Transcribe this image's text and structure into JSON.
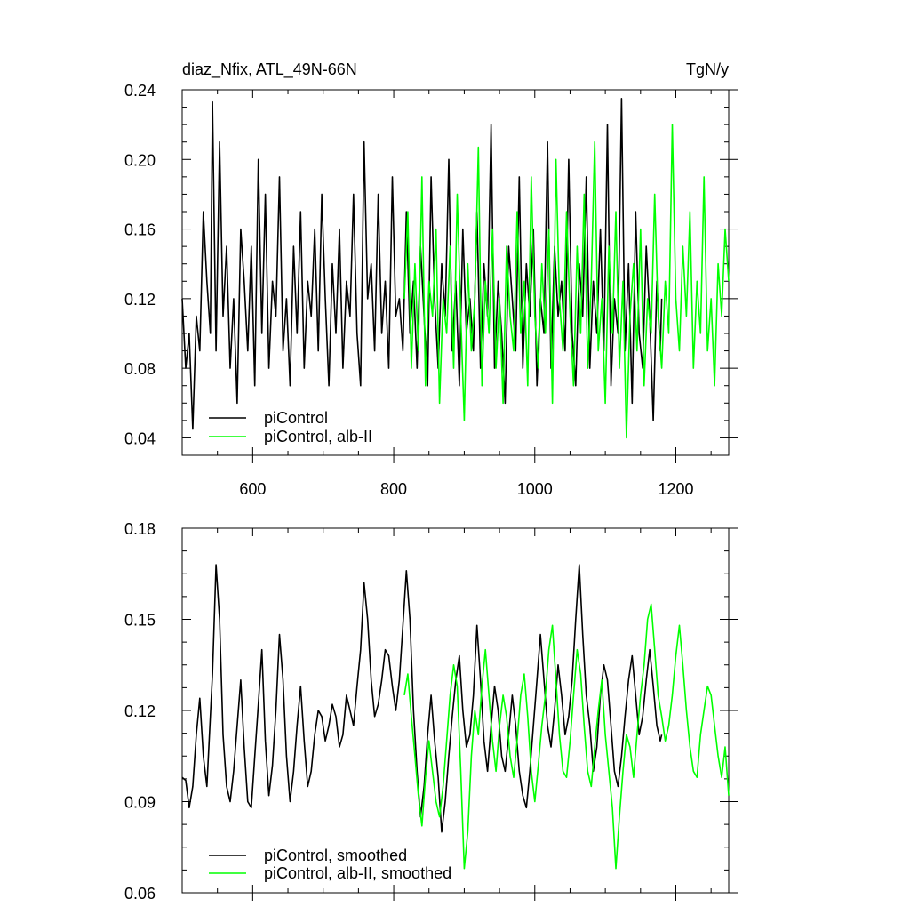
{
  "chart_data": [
    {
      "type": "line",
      "title": "diaz_Nfix, ATL_49N-66N",
      "units": "TgN/y",
      "xlim": [
        500,
        1275
      ],
      "ylim": [
        0.03,
        0.24
      ],
      "x_major_ticks": [
        600,
        800,
        1000,
        1200
      ],
      "x_tick_labels": [
        "600",
        "800",
        "1000",
        "1200"
      ],
      "y_major_ticks": [
        0.04,
        0.08,
        0.12,
        0.16,
        0.2,
        0.24
      ],
      "y_tick_labels": [
        "0.04",
        "0.08",
        "0.12",
        "0.16",
        "0.20",
        "0.24"
      ],
      "legend": {
        "position": "bottom-left",
        "entries": [
          "piControl",
          "piControl, alb-II"
        ]
      },
      "grid": false,
      "series": [
        {
          "name": "piControl",
          "color": "#000000",
          "x_start": 500,
          "x_end": 1180,
          "x": [
            500,
            505,
            510,
            515,
            520,
            525,
            530,
            535,
            540,
            543,
            548,
            553,
            558,
            563,
            568,
            573,
            578,
            583,
            588,
            593,
            598,
            603,
            608,
            613,
            618,
            623,
            628,
            633,
            638,
            643,
            648,
            653,
            658,
            663,
            668,
            673,
            678,
            683,
            688,
            693,
            698,
            703,
            708,
            713,
            718,
            723,
            728,
            733,
            738,
            743,
            748,
            753,
            758,
            763,
            768,
            773,
            778,
            783,
            788,
            793,
            798,
            803,
            808,
            813,
            818,
            823,
            828,
            833,
            838,
            843,
            848,
            853,
            858,
            863,
            868,
            873,
            878,
            883,
            888,
            893,
            898,
            903,
            908,
            913,
            918,
            923,
            928,
            933,
            938,
            943,
            948,
            953,
            958,
            963,
            968,
            973,
            978,
            983,
            988,
            993,
            998,
            1003,
            1008,
            1013,
            1018,
            1023,
            1028,
            1033,
            1038,
            1043,
            1048,
            1053,
            1058,
            1063,
            1068,
            1073,
            1078,
            1083,
            1088,
            1093,
            1098,
            1103,
            1108,
            1113,
            1118,
            1123,
            1128,
            1133,
            1138,
            1143,
            1148,
            1153,
            1158,
            1163,
            1168,
            1173,
            1178,
            1180
          ],
          "y": [
            0.12,
            0.08,
            0.1,
            0.045,
            0.11,
            0.09,
            0.17,
            0.13,
            0.1,
            0.233,
            0.09,
            0.21,
            0.11,
            0.15,
            0.08,
            0.12,
            0.06,
            0.16,
            0.13,
            0.09,
            0.15,
            0.07,
            0.2,
            0.1,
            0.18,
            0.08,
            0.13,
            0.11,
            0.19,
            0.09,
            0.12,
            0.07,
            0.15,
            0.1,
            0.17,
            0.08,
            0.13,
            0.11,
            0.16,
            0.09,
            0.18,
            0.12,
            0.07,
            0.14,
            0.1,
            0.16,
            0.08,
            0.13,
            0.11,
            0.18,
            0.1,
            0.07,
            0.21,
            0.12,
            0.14,
            0.09,
            0.18,
            0.1,
            0.13,
            0.08,
            0.19,
            0.11,
            0.12,
            0.09,
            0.17,
            0.1,
            0.13,
            0.08,
            0.15,
            0.11,
            0.07,
            0.19,
            0.12,
            0.08,
            0.14,
            0.11,
            0.2,
            0.09,
            0.13,
            0.07,
            0.16,
            0.1,
            0.12,
            0.09,
            0.17,
            0.08,
            0.14,
            0.11,
            0.22,
            0.08,
            0.13,
            0.1,
            0.06,
            0.15,
            0.12,
            0.09,
            0.19,
            0.08,
            0.14,
            0.11,
            0.16,
            0.07,
            0.12,
            0.1,
            0.21,
            0.08,
            0.15,
            0.11,
            0.13,
            0.09,
            0.2,
            0.1,
            0.07,
            0.14,
            0.11,
            0.19,
            0.08,
            0.13,
            0.1,
            0.16,
            0.09,
            0.22,
            0.07,
            0.12,
            0.1,
            0.235,
            0.09,
            0.14,
            0.06,
            0.17,
            0.1,
            0.08,
            0.15,
            0.11,
            0.05,
            0.13,
            0.09,
            0.12
          ]
        },
        {
          "name": "piControl, alb-II",
          "color": "#00ff00",
          "x_start": 815,
          "x_end": 1275,
          "x": [
            815,
            820,
            825,
            830,
            835,
            840,
            845,
            850,
            855,
            860,
            865,
            870,
            875,
            880,
            885,
            890,
            895,
            900,
            905,
            910,
            915,
            920,
            925,
            930,
            935,
            940,
            945,
            950,
            955,
            960,
            965,
            970,
            975,
            980,
            985,
            990,
            995,
            1000,
            1005,
            1010,
            1015,
            1020,
            1025,
            1030,
            1035,
            1040,
            1045,
            1050,
            1055,
            1060,
            1065,
            1070,
            1075,
            1080,
            1085,
            1090,
            1095,
            1100,
            1105,
            1110,
            1115,
            1120,
            1125,
            1130,
            1135,
            1140,
            1145,
            1150,
            1155,
            1160,
            1165,
            1170,
            1175,
            1180,
            1185,
            1190,
            1195,
            1200,
            1205,
            1210,
            1215,
            1220,
            1225,
            1230,
            1235,
            1240,
            1245,
            1250,
            1255,
            1260,
            1265,
            1270,
            1275
          ],
          "y": [
            0.12,
            0.17,
            0.08,
            0.14,
            0.09,
            0.19,
            0.07,
            0.13,
            0.11,
            0.16,
            0.06,
            0.12,
            0.1,
            0.15,
            0.08,
            0.18,
            0.11,
            0.05,
            0.14,
            0.09,
            0.12,
            0.207,
            0.07,
            0.13,
            0.1,
            0.16,
            0.08,
            0.12,
            0.06,
            0.15,
            0.11,
            0.09,
            0.17,
            0.1,
            0.13,
            0.07,
            0.19,
            0.11,
            0.08,
            0.14,
            0.1,
            0.16,
            0.06,
            0.2,
            0.12,
            0.09,
            0.17,
            0.11,
            0.07,
            0.15,
            0.1,
            0.18,
            0.08,
            0.13,
            0.21,
            0.09,
            0.12,
            0.06,
            0.15,
            0.1,
            0.17,
            0.08,
            0.13,
            0.04,
            0.11,
            0.14,
            0.09,
            0.16,
            0.07,
            0.12,
            0.1,
            0.18,
            0.11,
            0.08,
            0.13,
            0.1,
            0.22,
            0.12,
            0.09,
            0.15,
            0.11,
            0.17,
            0.08,
            0.13,
            0.1,
            0.19,
            0.09,
            0.12,
            0.07,
            0.14,
            0.11,
            0.16,
            0.13
          ]
        }
      ]
    },
    {
      "type": "line",
      "title": "",
      "xlim": [
        500,
        1275
      ],
      "ylim": [
        0.06,
        0.18
      ],
      "x_major_ticks": [
        600,
        800,
        1000,
        1200
      ],
      "x_tick_labels": [],
      "y_major_ticks": [
        0.06,
        0.09,
        0.12,
        0.15,
        0.18
      ],
      "y_tick_labels": [
        "0.06",
        "0.09",
        "0.12",
        "0.15",
        "0.18"
      ],
      "legend": {
        "position": "bottom-left",
        "entries": [
          "piControl, smoothed",
          "piControl, alb-II, smoothed"
        ]
      },
      "grid": false,
      "series": [
        {
          "name": "piControl, smoothed",
          "color": "#000000",
          "x_start": 500,
          "x_end": 1180,
          "x": [
            500,
            505,
            510,
            515,
            520,
            525,
            530,
            535,
            540,
            543,
            548,
            553,
            558,
            563,
            568,
            573,
            578,
            583,
            588,
            593,
            598,
            603,
            608,
            613,
            618,
            623,
            628,
            633,
            638,
            643,
            648,
            653,
            658,
            663,
            668,
            673,
            678,
            683,
            688,
            693,
            698,
            703,
            708,
            713,
            718,
            723,
            728,
            733,
            738,
            743,
            748,
            753,
            758,
            763,
            768,
            773,
            778,
            783,
            788,
            793,
            798,
            803,
            808,
            813,
            818,
            823,
            828,
            833,
            838,
            843,
            848,
            853,
            858,
            863,
            868,
            873,
            878,
            883,
            888,
            893,
            898,
            903,
            908,
            913,
            918,
            923,
            928,
            933,
            938,
            943,
            948,
            953,
            958,
            963,
            968,
            973,
            978,
            983,
            988,
            993,
            998,
            1003,
            1008,
            1013,
            1018,
            1023,
            1028,
            1033,
            1038,
            1043,
            1048,
            1053,
            1058,
            1063,
            1068,
            1073,
            1078,
            1083,
            1088,
            1093,
            1098,
            1103,
            1108,
            1113,
            1118,
            1123,
            1128,
            1133,
            1138,
            1143,
            1148,
            1153,
            1158,
            1163,
            1168,
            1173,
            1178,
            1180
          ],
          "y": [
            0.098,
            0.097,
            0.088,
            0.095,
            0.112,
            0.124,
            0.105,
            0.095,
            0.118,
            0.132,
            0.168,
            0.15,
            0.112,
            0.095,
            0.09,
            0.1,
            0.115,
            0.13,
            0.108,
            0.09,
            0.088,
            0.105,
            0.122,
            0.14,
            0.11,
            0.092,
            0.102,
            0.12,
            0.145,
            0.13,
            0.105,
            0.09,
            0.1,
            0.115,
            0.128,
            0.11,
            0.095,
            0.1,
            0.112,
            0.12,
            0.118,
            0.11,
            0.115,
            0.122,
            0.118,
            0.108,
            0.112,
            0.125,
            0.12,
            0.115,
            0.128,
            0.14,
            0.162,
            0.15,
            0.13,
            0.118,
            0.122,
            0.13,
            0.14,
            0.138,
            0.128,
            0.12,
            0.13,
            0.148,
            0.166,
            0.15,
            0.12,
            0.1,
            0.085,
            0.095,
            0.112,
            0.125,
            0.11,
            0.098,
            0.08,
            0.09,
            0.105,
            0.118,
            0.13,
            0.138,
            0.12,
            0.108,
            0.112,
            0.125,
            0.148,
            0.13,
            0.11,
            0.1,
            0.115,
            0.128,
            0.12,
            0.105,
            0.1,
            0.112,
            0.125,
            0.115,
            0.1,
            0.092,
            0.088,
            0.1,
            0.115,
            0.13,
            0.145,
            0.13,
            0.115,
            0.108,
            0.12,
            0.135,
            0.125,
            0.112,
            0.118,
            0.13,
            0.15,
            0.168,
            0.145,
            0.125,
            0.115,
            0.1,
            0.108,
            0.125,
            0.135,
            0.13,
            0.115,
            0.1,
            0.095,
            0.105,
            0.118,
            0.13,
            0.138,
            0.125,
            0.112,
            0.118,
            0.13,
            0.14,
            0.128,
            0.115,
            0.11,
            0.112
          ]
        },
        {
          "name": "piControl, alb-II, smoothed",
          "color": "#00ff00",
          "x_start": 815,
          "x_end": 1275,
          "x": [
            815,
            820,
            825,
            830,
            835,
            840,
            845,
            850,
            855,
            860,
            865,
            870,
            875,
            880,
            885,
            890,
            895,
            900,
            905,
            910,
            915,
            920,
            925,
            930,
            935,
            940,
            945,
            950,
            955,
            960,
            965,
            970,
            975,
            980,
            985,
            990,
            995,
            1000,
            1005,
            1010,
            1015,
            1020,
            1025,
            1030,
            1035,
            1040,
            1045,
            1050,
            1055,
            1060,
            1065,
            1070,
            1075,
            1080,
            1085,
            1090,
            1095,
            1100,
            1105,
            1110,
            1115,
            1120,
            1125,
            1130,
            1135,
            1140,
            1145,
            1150,
            1155,
            1160,
            1165,
            1170,
            1175,
            1180,
            1185,
            1190,
            1195,
            1200,
            1205,
            1210,
            1215,
            1220,
            1225,
            1230,
            1235,
            1240,
            1245,
            1250,
            1255,
            1260,
            1265,
            1270,
            1275
          ],
          "y": [
            0.125,
            0.132,
            0.118,
            0.105,
            0.092,
            0.082,
            0.098,
            0.11,
            0.1,
            0.09,
            0.085,
            0.095,
            0.11,
            0.125,
            0.135,
            0.128,
            0.1,
            0.068,
            0.08,
            0.105,
            0.12,
            0.112,
            0.128,
            0.14,
            0.125,
            0.11,
            0.1,
            0.115,
            0.125,
            0.118,
            0.105,
            0.098,
            0.11,
            0.125,
            0.132,
            0.118,
            0.1,
            0.09,
            0.102,
            0.115,
            0.125,
            0.14,
            0.148,
            0.13,
            0.112,
            0.1,
            0.098,
            0.11,
            0.125,
            0.14,
            0.132,
            0.115,
            0.1,
            0.095,
            0.108,
            0.12,
            0.13,
            0.112,
            0.1,
            0.088,
            0.068,
            0.085,
            0.1,
            0.112,
            0.108,
            0.098,
            0.112,
            0.125,
            0.135,
            0.15,
            0.155,
            0.14,
            0.125,
            0.118,
            0.11,
            0.115,
            0.125,
            0.138,
            0.148,
            0.135,
            0.12,
            0.108,
            0.1,
            0.098,
            0.112,
            0.12,
            0.128,
            0.125,
            0.115,
            0.105,
            0.098,
            0.108,
            0.092
          ]
        }
      ]
    }
  ]
}
